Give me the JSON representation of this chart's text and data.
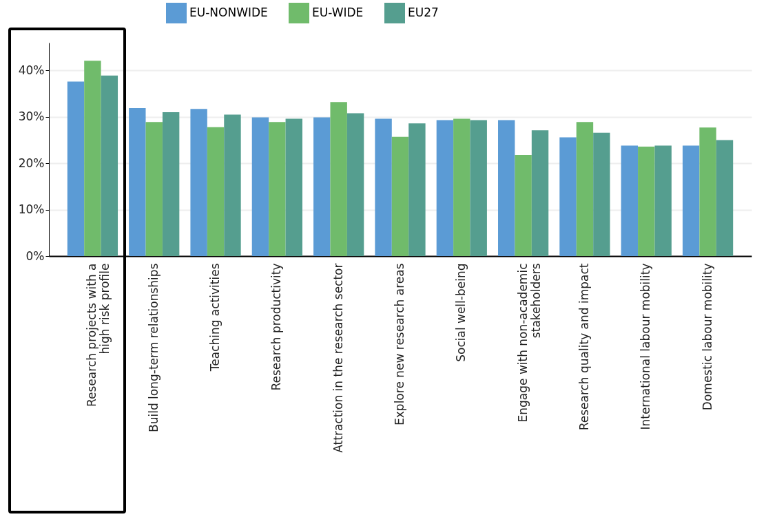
{
  "chart_data": {
    "type": "bar",
    "categories": [
      "Research projects with a\nhigh risk profile",
      "Build long-term relationships",
      "Teaching activities",
      "Research productivity",
      "Attraction in the research sector",
      "Explore new research areas",
      "Social well-being",
      "Engage with non-academic\nstakeholders",
      "Research quality and impact",
      "International labour mobility",
      "Domestic labour mobility"
    ],
    "series": [
      {
        "name": "EU-NONWIDE",
        "color": "#5b9bd5",
        "values": [
          37.6,
          31.9,
          31.7,
          29.9,
          29.9,
          29.6,
          29.3,
          29.3,
          25.6,
          23.8,
          23.8
        ]
      },
      {
        "name": "EU-WIDE",
        "color": "#70bb6b",
        "values": [
          42.1,
          28.9,
          27.8,
          28.9,
          33.2,
          25.7,
          29.6,
          21.8,
          28.9,
          23.6,
          27.7
        ]
      },
      {
        "name": "EU27",
        "color": "#559e8f",
        "values": [
          38.9,
          31.0,
          30.5,
          29.6,
          30.8,
          28.6,
          29.3,
          27.1,
          26.6,
          23.8,
          25.0
        ]
      }
    ],
    "ylim": [
      0,
      46
    ],
    "yticks": [
      {
        "value": 0,
        "label": "0%"
      },
      {
        "value": 10,
        "label": "10%"
      },
      {
        "value": 20,
        "label": "20%"
      },
      {
        "value": 30,
        "label": "30%"
      },
      {
        "value": 40,
        "label": "40%"
      }
    ],
    "grid": "y",
    "legend": "top"
  }
}
